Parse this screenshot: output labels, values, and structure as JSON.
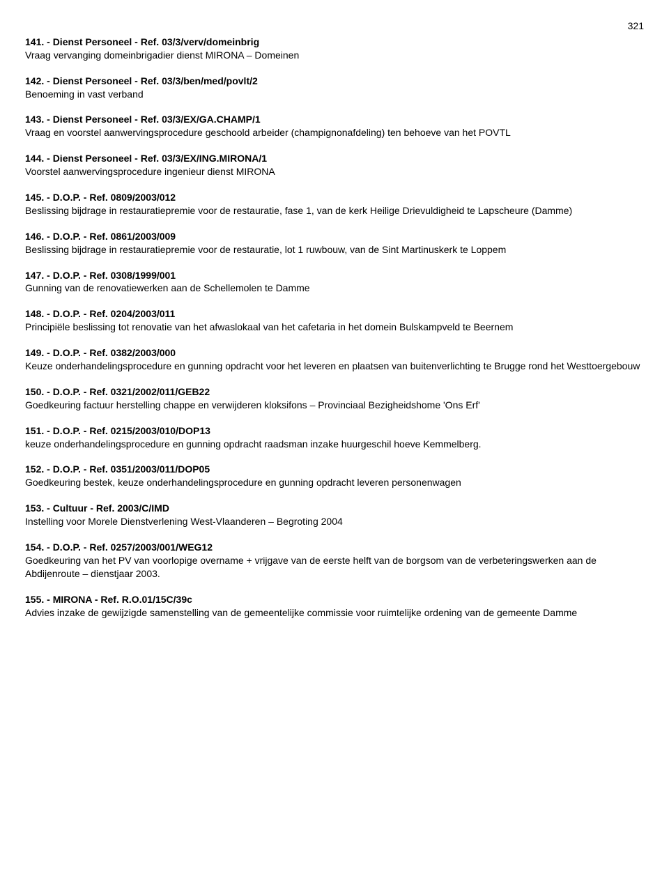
{
  "page_number": "321",
  "entries": [
    {
      "heading": "141. - Dienst Personeel - Ref. 03/3/verv/domeinbrig",
      "body": "Vraag vervanging domeinbrigadier dienst MIRONA – Domeinen"
    },
    {
      "heading": "142. - Dienst Personeel - Ref. 03/3/ben/med/povlt/2",
      "body": "Benoeming in vast verband"
    },
    {
      "heading": "143. - Dienst Personeel - Ref. 03/3/EX/GA.CHAMP/1",
      "body": "Vraag en voorstel aanwervingsprocedure geschoold arbeider (champignonafdeling) ten behoeve van het POVTL"
    },
    {
      "heading": "144. - Dienst Personeel - Ref. 03/3/EX/ING.MIRONA/1",
      "body": "Voorstel aanwervingsprocedure ingenieur dienst MIRONA"
    },
    {
      "heading": "145. - D.O.P. - Ref. 0809/2003/012",
      "body": "Beslissing bijdrage in restauratiepremie voor de restauratie, fase 1, van de kerk Heilige Drievuldigheid te Lapscheure (Damme)"
    },
    {
      "heading": "146. - D.O.P. - Ref. 0861/2003/009",
      "body": "Beslissing bijdrage in restauratiepremie voor de restauratie, lot 1 ruwbouw, van de Sint Martinuskerk te Loppem"
    },
    {
      "heading": "147. - D.O.P. - Ref. 0308/1999/001",
      "body": "Gunning van de renovatiewerken aan de Schellemolen te Damme"
    },
    {
      "heading": "148. - D.O.P. - Ref. 0204/2003/011",
      "body": "Principiële beslissing tot renovatie van het afwaslokaal van het cafetaria in het domein Bulskampveld te Beernem"
    },
    {
      "heading": "149. - D.O.P. - Ref. 0382/2003/000",
      "body": "Keuze onderhandelingsprocedure en gunning opdracht voor het leveren en plaatsen van buitenverlichting te Brugge rond het Westtoergebouw"
    },
    {
      "heading": "150. - D.O.P. - Ref. 0321/2002/011/GEB22",
      "body": "Goedkeuring factuur herstelling chappe en verwijderen kloksifons – Provinciaal Bezigheidshome 'Ons Erf'"
    },
    {
      "heading": "151. - D.O.P. - Ref. 0215/2003/010/DOP13",
      "body": "keuze onderhandelingsprocedure en gunning opdracht raadsman inzake huurgeschil hoeve Kemmelberg."
    },
    {
      "heading": "152. - D.O.P. - Ref. 0351/2003/011/DOP05",
      "body": "Goedkeuring bestek, keuze onderhandelingsprocedure en gunning opdracht leveren personenwagen"
    },
    {
      "heading": "153. - Cultuur - Ref. 2003/C/IMD",
      "body": "Instelling voor Morele Dienstverlening West-Vlaanderen – Begroting 2004"
    },
    {
      "heading": "154. - D.O.P. - Ref. 0257/2003/001/WEG12",
      "body": "Goedkeuring van het PV van voorlopige overname + vrijgave van de eerste helft van de borgsom van de verbeteringswerken aan de Abdijenroute – dienstjaar 2003."
    },
    {
      "heading": "155. - MIRONA - Ref. R.O.01/15C/39c",
      "body": "Advies inzake de gewijzigde samenstelling van de gemeentelijke commissie voor ruimtelijke ordening van de gemeente Damme"
    }
  ]
}
